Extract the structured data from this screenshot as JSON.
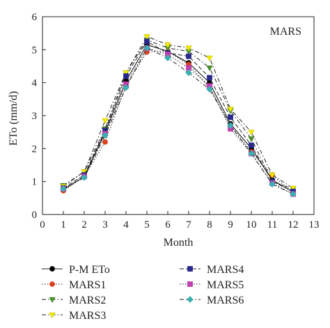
{
  "chart_data": {
    "type": "line",
    "panel_label": "MARS",
    "xlabel": "Month",
    "ylabel": "ETo (mm/d)",
    "xlim": [
      0,
      13
    ],
    "ylim": [
      0,
      6
    ],
    "x_ticks": [
      0,
      1,
      2,
      3,
      4,
      5,
      6,
      7,
      8,
      9,
      10,
      11,
      12,
      13
    ],
    "y_ticks": [
      0,
      1,
      2,
      3,
      4,
      5,
      6
    ],
    "x": [
      1,
      2,
      3,
      4,
      5,
      6,
      7,
      8,
      9,
      10,
      11,
      12
    ],
    "grid": false,
    "legend_position": "bottom",
    "series": [
      {
        "name": "P-M ETo",
        "color": "#000000",
        "marker": "circle",
        "dash": "solid",
        "values": [
          0.75,
          1.15,
          2.5,
          4.05,
          5.15,
          4.95,
          4.6,
          4.0,
          2.75,
          2.0,
          1.05,
          0.68
        ]
      },
      {
        "name": "MARS1",
        "color": "#d9401e",
        "marker": "circle",
        "dash": "dotted",
        "values": [
          0.72,
          1.15,
          2.2,
          3.9,
          4.93,
          4.95,
          4.55,
          3.85,
          2.7,
          1.9,
          1.2,
          0.65
        ]
      },
      {
        "name": "MARS2",
        "color": "#4a8c2a",
        "marker": "triangle-down",
        "dash": "dashdot",
        "values": [
          0.88,
          1.3,
          2.6,
          4.3,
          5.3,
          5.05,
          4.95,
          4.45,
          3.15,
          2.3,
          1.0,
          0.78
        ]
      },
      {
        "name": "MARS3",
        "color": "#f2ea00",
        "marker": "triangle-down",
        "dash": "dashdot",
        "values": [
          0.85,
          1.3,
          2.85,
          4.3,
          5.4,
          5.15,
          5.05,
          4.75,
          3.2,
          2.5,
          1.2,
          0.8
        ]
      },
      {
        "name": "MARS4",
        "color": "#2a2a8c",
        "marker": "square",
        "dash": "dashed",
        "values": [
          0.8,
          1.2,
          2.55,
          4.2,
          5.25,
          4.9,
          4.8,
          4.15,
          2.95,
          2.1,
          1.0,
          0.7
        ]
      },
      {
        "name": "MARS5",
        "color": "#c040b0",
        "marker": "square",
        "dash": "dotted",
        "values": [
          0.78,
          1.15,
          2.45,
          3.95,
          5.05,
          4.85,
          4.45,
          3.9,
          2.6,
          1.85,
          0.95,
          0.62
        ]
      },
      {
        "name": "MARS6",
        "color": "#3bb0b0",
        "marker": "diamond",
        "dash": "dashdot",
        "values": [
          0.78,
          1.12,
          2.4,
          3.85,
          5.05,
          4.75,
          4.3,
          3.8,
          2.7,
          1.85,
          0.92,
          0.62
        ]
      }
    ]
  }
}
